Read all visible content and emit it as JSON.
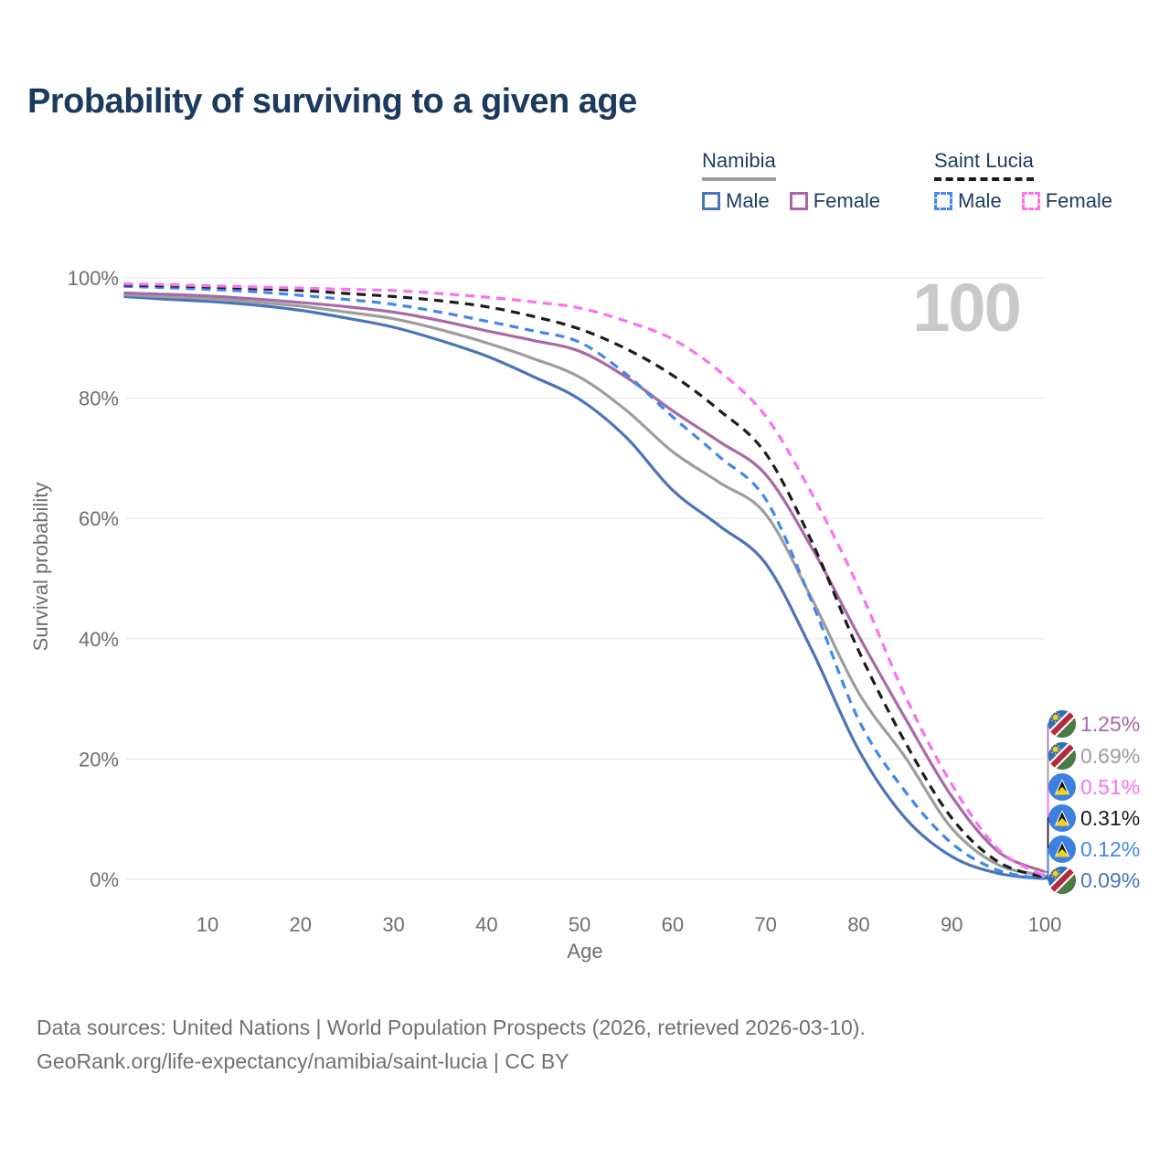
{
  "header": {
    "title": "Probability of surviving to a given age"
  },
  "legend": {
    "groups": [
      {
        "title": "Namibia",
        "line_style": "solid",
        "underline_color": "#9d9d9d",
        "items": [
          {
            "label": "Male",
            "color": "#4a74ba",
            "dashed": false
          },
          {
            "label": "Female",
            "color": "#a869a6",
            "dashed": false
          }
        ]
      },
      {
        "title": "Saint Lucia",
        "line_style": "dashed",
        "underline_color": "#1c1c1c",
        "items": [
          {
            "label": "Male",
            "color": "#4087f0",
            "dashed": true
          },
          {
            "label": "Female",
            "color": "#fc71ee",
            "dashed": true
          }
        ]
      }
    ]
  },
  "chart_data": {
    "type": "line",
    "title": "Probability of surviving to a given age",
    "xlabel": "Age",
    "ylabel": "Survival probability",
    "xlim": [
      1,
      100
    ],
    "ylim": [
      0,
      100
    ],
    "grid": "horizontal",
    "x_ticks": [
      10,
      20,
      30,
      40,
      50,
      60,
      70,
      80,
      90,
      100
    ],
    "y_ticks": [
      {
        "value": 100,
        "label": "100%"
      },
      {
        "value": 80,
        "label": "80%"
      },
      {
        "value": 60,
        "label": "60%"
      },
      {
        "value": 40,
        "label": "40%"
      },
      {
        "value": 20,
        "label": "20%"
      },
      {
        "value": 0,
        "label": "0%"
      }
    ],
    "hover_age_label": "100",
    "ages": [
      1,
      5,
      10,
      15,
      20,
      25,
      30,
      35,
      40,
      45,
      50,
      55,
      60,
      65,
      70,
      75,
      80,
      85,
      90,
      95,
      100
    ],
    "series": [
      {
        "name": "Namibia Male",
        "country": "Namibia",
        "sex": "Male",
        "color": "#4a74ba",
        "dashed": false,
        "values": [
          96.9,
          96.5,
          96.1,
          95.5,
          94.6,
          93.3,
          91.8,
          89.6,
          87.0,
          83.6,
          79.8,
          73.5,
          64.7,
          58.8,
          52.5,
          38.0,
          21.5,
          10.2,
          3.8,
          1.0,
          0.09
        ],
        "end_label": "0.09%"
      },
      {
        "name": "Namibia",
        "country": "Namibia",
        "sex": "Both",
        "color": "#9d9d9d",
        "dashed": false,
        "values": [
          97.2,
          96.9,
          96.6,
          96.0,
          95.3,
          94.3,
          93.2,
          91.4,
          89.2,
          86.6,
          83.5,
          78.0,
          71.1,
          66.0,
          60.7,
          46.5,
          31.0,
          20.3,
          8.5,
          2.4,
          0.69
        ],
        "end_label": "0.69%"
      },
      {
        "name": "Namibia Female",
        "country": "Namibia",
        "sex": "Female",
        "color": "#a869a6",
        "dashed": false,
        "values": [
          97.5,
          97.3,
          97.0,
          96.5,
          95.9,
          95.2,
          94.3,
          92.9,
          91.2,
          89.6,
          87.8,
          83.5,
          77.9,
          72.8,
          67.3,
          55.0,
          40.5,
          26.8,
          13.8,
          4.6,
          1.25
        ],
        "end_label": "1.25%"
      },
      {
        "name": "Saint Lucia Male",
        "country": "Saint Lucia",
        "sex": "Male",
        "color": "#4087f0",
        "dashed": true,
        "values": [
          98.6,
          98.4,
          98.1,
          97.7,
          97.1,
          96.4,
          95.6,
          94.3,
          92.8,
          91.2,
          89.3,
          84.0,
          76.9,
          70.3,
          63.2,
          46.0,
          26.5,
          14.6,
          6.0,
          1.5,
          0.12
        ],
        "end_label": "0.12%"
      },
      {
        "name": "Saint Lucia",
        "country": "Saint Lucia",
        "sex": "Both",
        "color": "#1c1c1c",
        "dashed": true,
        "values": [
          98.8,
          98.7,
          98.5,
          98.2,
          97.9,
          97.4,
          96.9,
          96.2,
          95.2,
          93.6,
          91.5,
          88.2,
          83.8,
          78.0,
          70.8,
          56.0,
          38.0,
          22.8,
          10.2,
          2.9,
          0.31
        ],
        "end_label": "0.31%"
      },
      {
        "name": "Saint Lucia Female",
        "country": "Saint Lucia",
        "sex": "Female",
        "color": "#fc71ee",
        "dashed": true,
        "values": [
          99.0,
          98.9,
          98.7,
          98.5,
          98.3,
          98.1,
          97.9,
          97.4,
          96.8,
          96.0,
          95.0,
          92.8,
          89.8,
          84.5,
          77.0,
          64.0,
          48.5,
          30.5,
          15.8,
          5.0,
          0.51
        ],
        "end_label": "0.51%"
      }
    ]
  },
  "footer": {
    "line1": "Data sources: United Nations | World Population Prospects (2026, retrieved 2026-03-10).",
    "line2": "GeoRank.org/life-expectancy/namibia/saint-lucia | CC BY"
  }
}
